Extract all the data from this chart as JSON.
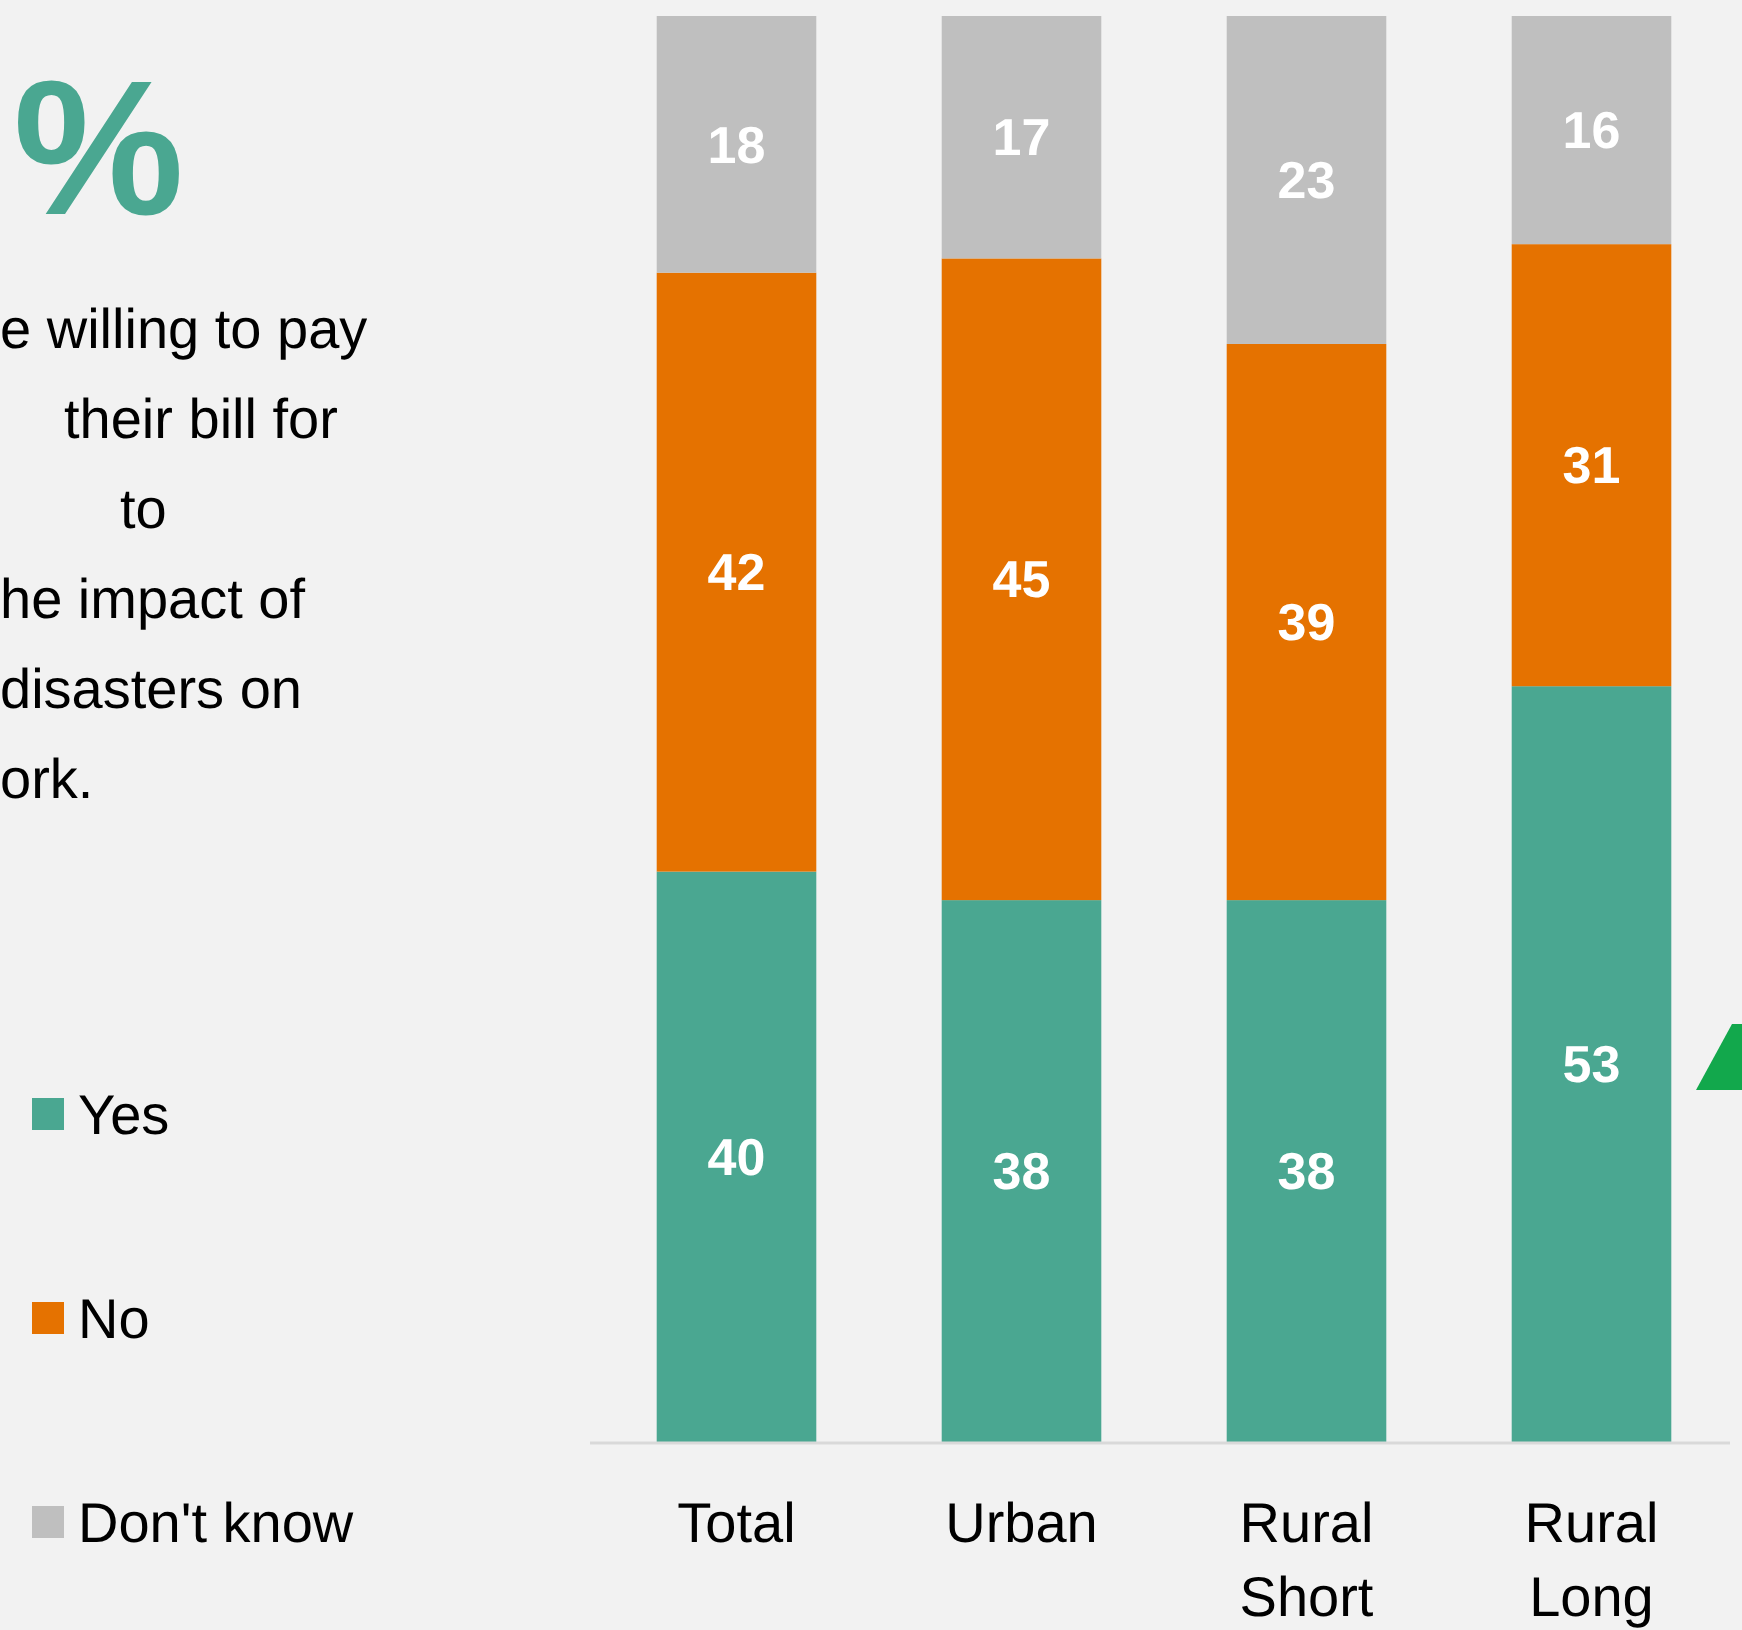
{
  "chart_data": {
    "type": "bar",
    "stacked": true,
    "title": "%",
    "annotations": [
      "e willing to pay",
      "their bill for",
      "to",
      "he impact of",
      "disasters on",
      "ork."
    ],
    "categories": [
      "Total",
      "Urban",
      "Rural Short",
      "Rural Long"
    ],
    "series": [
      {
        "name": "Yes",
        "color": "#4aa791",
        "values": [
          40,
          38,
          38,
          53
        ]
      },
      {
        "name": "No",
        "color": "#e57200",
        "values": [
          42,
          45,
          39,
          31
        ]
      },
      {
        "name": "Don't know",
        "color": "#bfbfbf",
        "values": [
          18,
          17,
          23,
          16
        ]
      }
    ],
    "data_labels": true,
    "legend": "left",
    "grid": false
  }
}
